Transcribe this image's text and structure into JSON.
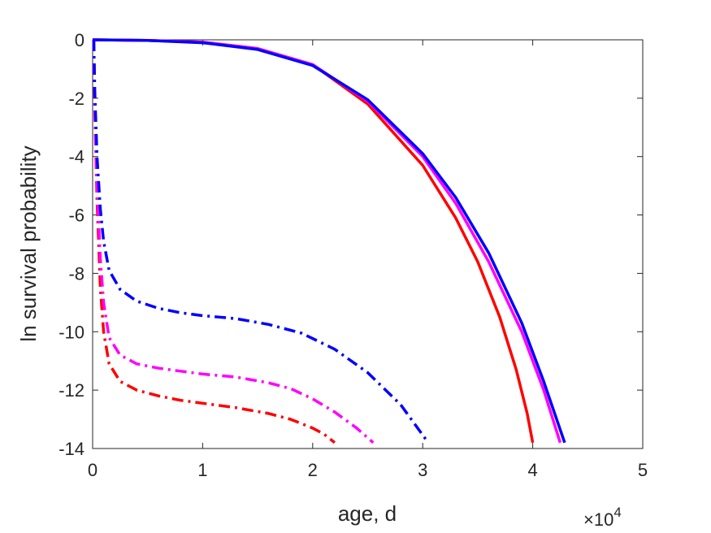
{
  "chart_data": {
    "type": "line",
    "xlabel": "age, d",
    "ylabel": "ln survival probability",
    "x_exponent_label": "×10",
    "x_exponent_power": "4",
    "xlim": [
      0,
      5
    ],
    "ylim": [
      -14,
      0
    ],
    "x_ticks": [
      0,
      1,
      2,
      3,
      4,
      5
    ],
    "y_ticks": [
      0,
      -2,
      -4,
      -6,
      -8,
      -10,
      -12,
      -14
    ],
    "x_tick_labels": [
      "0",
      "1",
      "2",
      "3",
      "4",
      "5"
    ],
    "y_tick_labels": [
      "0",
      "-2",
      "-4",
      "-6",
      "-8",
      "-10",
      "-12",
      "-14"
    ],
    "grid": false,
    "series": [
      {
        "color": "#ff0000",
        "dash": "solid",
        "x": [
          0.0,
          0.5,
          1.0,
          1.5,
          2.0,
          2.5,
          3.0,
          3.3,
          3.5,
          3.7,
          3.85,
          3.95,
          4.0
        ],
        "y": [
          0.0,
          -0.02,
          -0.08,
          -0.3,
          -0.85,
          -2.2,
          -4.3,
          -6.1,
          -7.6,
          -9.5,
          -11.3,
          -12.8,
          -13.8
        ]
      },
      {
        "color": "#ff00ff",
        "dash": "solid",
        "x": [
          0.0,
          0.5,
          1.0,
          1.5,
          2.0,
          2.5,
          3.0,
          3.3,
          3.6,
          3.9,
          4.1,
          4.25
        ],
        "y": [
          0.0,
          -0.02,
          -0.08,
          -0.3,
          -0.85,
          -2.1,
          -4.0,
          -5.6,
          -7.6,
          -10.0,
          -12.0,
          -13.8
        ]
      },
      {
        "color": "#0000ff",
        "dash": "solid",
        "x": [
          0.0,
          0.5,
          1.0,
          1.5,
          2.0,
          2.5,
          3.0,
          3.3,
          3.6,
          3.9,
          4.1,
          4.29
        ],
        "y": [
          0.0,
          -0.02,
          -0.1,
          -0.33,
          -0.88,
          -2.05,
          -3.9,
          -5.4,
          -7.3,
          -9.7,
          -11.7,
          -13.8
        ]
      },
      {
        "color": "#ff0000",
        "dash": "dashdot",
        "x": [
          0.01,
          0.02,
          0.04,
          0.07,
          0.1,
          0.15,
          0.25,
          0.4,
          0.6,
          0.8,
          1.0,
          1.3,
          1.6,
          1.8,
          2.0,
          2.1,
          2.2
        ],
        "y": [
          0.0,
          -2.5,
          -5.5,
          -8.5,
          -10.0,
          -11.1,
          -11.7,
          -12.0,
          -12.2,
          -12.35,
          -12.45,
          -12.6,
          -12.8,
          -13.0,
          -13.3,
          -13.5,
          -13.8
        ]
      },
      {
        "color": "#ff00ff",
        "dash": "dashdot",
        "x": [
          0.01,
          0.02,
          0.04,
          0.07,
          0.1,
          0.15,
          0.25,
          0.4,
          0.6,
          0.8,
          1.0,
          1.3,
          1.6,
          1.8,
          2.0,
          2.2,
          2.4,
          2.55
        ],
        "y": [
          0.0,
          -2.3,
          -5.0,
          -7.5,
          -9.0,
          -10.2,
          -10.8,
          -11.1,
          -11.25,
          -11.35,
          -11.45,
          -11.55,
          -11.75,
          -11.95,
          -12.3,
          -12.75,
          -13.3,
          -13.8
        ]
      },
      {
        "color": "#0000ff",
        "dash": "dashdot",
        "x": [
          0.01,
          0.02,
          0.04,
          0.07,
          0.1,
          0.15,
          0.25,
          0.4,
          0.6,
          0.8,
          1.0,
          1.3,
          1.6,
          1.9,
          2.2,
          2.5,
          2.8,
          3.05
        ],
        "y": [
          0.0,
          -1.8,
          -4.0,
          -5.8,
          -6.9,
          -7.9,
          -8.55,
          -8.95,
          -9.2,
          -9.35,
          -9.45,
          -9.55,
          -9.75,
          -10.05,
          -10.6,
          -11.4,
          -12.5,
          -13.8
        ]
      }
    ]
  }
}
